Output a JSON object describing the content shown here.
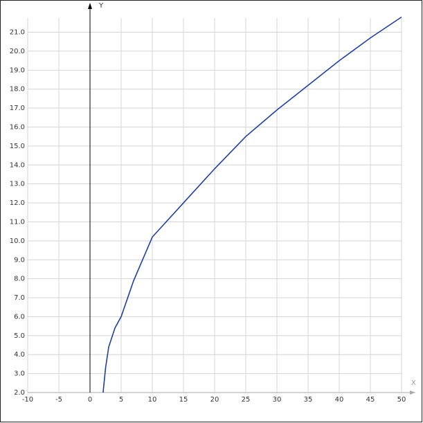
{
  "chart_data": {
    "type": "line",
    "x_label": "X",
    "y_label": "Y",
    "x": [
      2.1,
      2.5,
      3,
      4,
      5,
      7,
      10,
      15,
      20,
      25,
      30,
      35,
      40,
      45,
      50
    ],
    "series": [
      {
        "color": "#1f3f9f",
        "values": [
          2.0,
          3.3,
          4.4,
          5.4,
          6.0,
          7.9,
          10.2,
          12.0,
          13.8,
          15.5,
          16.9,
          18.2,
          19.5,
          20.7,
          21.8
        ]
      }
    ],
    "xlim": [
      -10,
      50
    ],
    "ylim": [
      2,
      21.75
    ],
    "xticks": [
      -10,
      -5,
      0,
      5,
      10,
      15,
      20,
      25,
      30,
      35,
      40,
      45,
      50
    ],
    "yticks": [
      {
        "value": 2,
        "label": "2.0"
      },
      {
        "value": 3,
        "label": "3.0"
      },
      {
        "value": 4,
        "label": "4.0"
      },
      {
        "value": 5,
        "label": "5.0"
      },
      {
        "value": 6,
        "label": "6.0"
      },
      {
        "value": 7,
        "label": "7.0"
      },
      {
        "value": 8,
        "label": "8.0"
      },
      {
        "value": 9,
        "label": "9.0"
      },
      {
        "value": 10,
        "label": "10.0"
      },
      {
        "value": 11,
        "label": "11.0"
      },
      {
        "value": 12,
        "label": "12.0"
      },
      {
        "value": 13,
        "label": "13.0"
      },
      {
        "value": 14,
        "label": "14.0"
      },
      {
        "value": 15,
        "label": "15.0"
      },
      {
        "value": 16,
        "label": "16.0"
      },
      {
        "value": 17,
        "label": "17.0"
      },
      {
        "value": 18,
        "label": "18.0"
      },
      {
        "value": 19,
        "label": "19.0"
      },
      {
        "value": 20,
        "label": "20.0"
      },
      {
        "value": 21,
        "label": "21.0"
      }
    ],
    "grid": true
  }
}
